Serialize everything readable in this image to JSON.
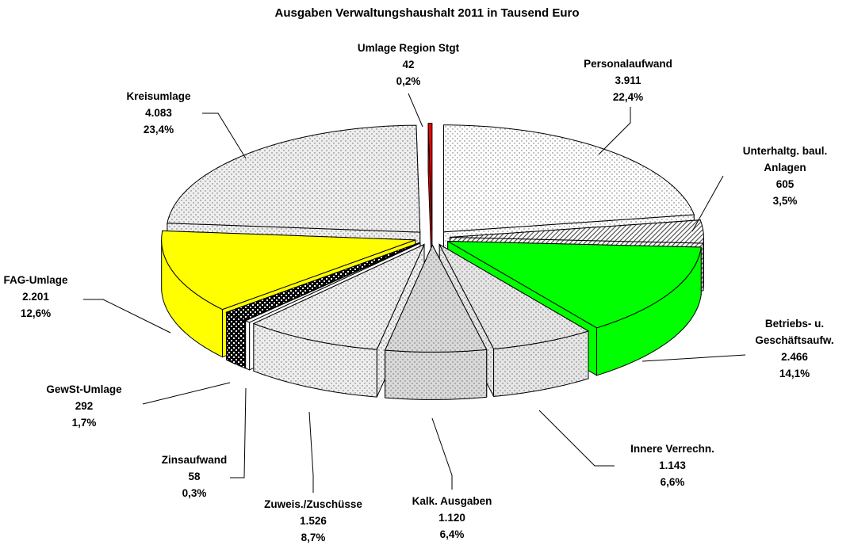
{
  "chart_data": {
    "type": "pie3d",
    "title": "Ausgaben Verwaltungshaushalt 2011 in Tausend Euro",
    "categories": [
      "Personalaufwand",
      "Unterhaltg. baul. Anlagen",
      "Betriebs- u. Geschäftsaufw.",
      "Innere Verrechn.",
      "Kalk. Ausgaben",
      "Zuweis./Zuschüsse",
      "Zinsaufwand",
      "GewSt-Umlage",
      "FAG-Umlage",
      "Kreisumlage",
      "Umlage Region Stgt"
    ],
    "values": [
      3911,
      605,
      2466,
      1143,
      1120,
      1526,
      58,
      292,
      2201,
      4083,
      42
    ],
    "value_labels": [
      "3.911",
      "605",
      "2.466",
      "1.143",
      "1.120",
      "1.526",
      "58",
      "292",
      "2.201",
      "4.083",
      "42"
    ],
    "percentages": [
      22.4,
      3.5,
      14.1,
      6.6,
      6.4,
      8.7,
      0.3,
      1.7,
      12.6,
      23.4,
      0.2
    ],
    "percent_labels": [
      "22,4%",
      "3,5%",
      "14,1%",
      "6,6%",
      "6,4%",
      "8,7%",
      "0,3%",
      "1,7%",
      "12,6%",
      "23,4%",
      "0,2%"
    ],
    "colors": [
      "#ffffff",
      "#ffffff",
      "#00ff00",
      "#e6e6e6",
      "#d9d9d9",
      "#eeeeee",
      "#ffffff",
      "#000000",
      "#ffff00",
      "#eeeeee",
      "#ff0000"
    ],
    "patterns": [
      "dots",
      "hatch",
      "none",
      "dots",
      "dots",
      "dots",
      "none",
      "checker",
      "none",
      "dots",
      "none"
    ]
  }
}
